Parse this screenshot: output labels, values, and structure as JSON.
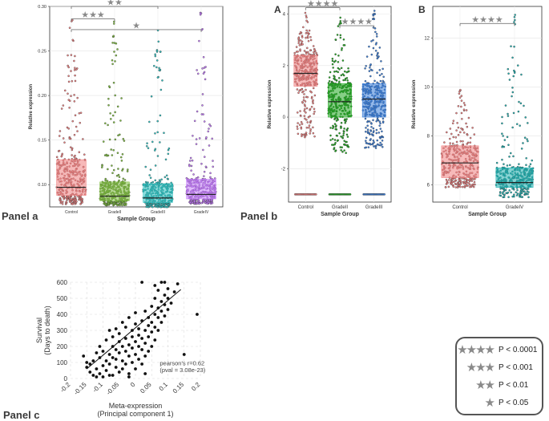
{
  "panels": {
    "a": {
      "label": "Panel a"
    },
    "b": {
      "label": "Panel b"
    },
    "c": {
      "label": "Panel c"
    }
  },
  "chart_data": [
    {
      "id": "panel-a",
      "type": "box",
      "title": "",
      "xlabel": "Sample Group",
      "ylabel": "Relative expression",
      "ylim": [
        0.075,
        0.3
      ],
      "yticks": [
        0.1,
        0.15,
        0.2,
        0.25,
        0.3
      ],
      "ytick_labels": [
        "0.10",
        "0.15",
        "0.20",
        "0.25",
        "0.30"
      ],
      "categories": [
        "Control",
        "GradeII",
        "GradeIII",
        "GradeIV"
      ],
      "colors": [
        "#f08080",
        "#7fbf3f",
        "#2ec4c4",
        "#c77dff"
      ],
      "boxes": [
        {
          "q1": 0.088,
          "median": 0.097,
          "q3": 0.128,
          "max": 0.298
        },
        {
          "q1": 0.082,
          "median": 0.087,
          "q3": 0.103,
          "max": 0.288
        },
        {
          "q1": 0.08,
          "median": 0.085,
          "q3": 0.101,
          "max": 0.284
        },
        {
          "q1": 0.084,
          "median": 0.089,
          "q3": 0.106,
          "max": 0.294
        }
      ],
      "significance": [
        {
          "from": 0,
          "to": 1,
          "stars": "★★★",
          "y": 0.286
        },
        {
          "from": 0,
          "to": 2,
          "stars": "★★",
          "y": 0.3
        },
        {
          "from": 0,
          "to": 3,
          "stars": "★",
          "y": 0.274
        }
      ]
    },
    {
      "id": "panel-b-A",
      "type": "box",
      "title": "A",
      "xlabel": "Sample Group",
      "ylabel": "Relative expression",
      "ylim": [
        -3.3,
        4.3
      ],
      "yticks": [
        -2,
        0,
        2,
        4
      ],
      "ytick_labels": [
        "-2",
        "0",
        "2",
        "4"
      ],
      "categories": [
        "Control",
        "GradeII",
        "GradeIII"
      ],
      "colors": [
        "#f08080",
        "#22aa22",
        "#3a7fdc"
      ],
      "boxes": [
        {
          "q1": 1.2,
          "median": 1.7,
          "q3": 2.4,
          "max": 4.1,
          "min": -0.8
        },
        {
          "q1": 0.0,
          "median": 0.6,
          "q3": 1.3,
          "max": 4.0,
          "min": -1.4
        },
        {
          "q1": 0.0,
          "median": 0.7,
          "q3": 1.3,
          "max": 4.2,
          "min": -1.2
        }
      ],
      "floor_value": -3,
      "significance": [
        {
          "from": 0,
          "to": 1,
          "stars": "★★★★",
          "y": 4.25
        },
        {
          "from": 1,
          "to": 2,
          "stars": "★★★★",
          "y": 3.55
        }
      ]
    },
    {
      "id": "panel-b-B",
      "type": "box",
      "title": "B",
      "xlabel": "Sample Group",
      "ylabel": "Relative expression",
      "ylim": [
        5.3,
        13.3
      ],
      "yticks": [
        6,
        8,
        10,
        12
      ],
      "ytick_labels": [
        "6",
        "8",
        "10",
        "12"
      ],
      "categories": [
        "Control",
        "GradeIV"
      ],
      "colors": [
        "#f08080",
        "#20b2b2"
      ],
      "boxes": [
        {
          "q1": 6.3,
          "median": 6.9,
          "q3": 7.6,
          "max": 9.9,
          "min": 5.9
        },
        {
          "q1": 5.9,
          "median": 6.1,
          "q3": 6.7,
          "max": 13.0,
          "min": 5.5
        }
      ],
      "significance": [
        {
          "from": 0,
          "to": 1,
          "stars": "★★★★",
          "y": 12.6
        }
      ]
    },
    {
      "id": "panel-c",
      "type": "scatter",
      "title": "",
      "xlabel": "Meta-expression\n(Principal component 1)",
      "ylabel": "Survival\n(Days to death)",
      "xlim": [
        -0.2,
        0.2
      ],
      "ylim": [
        0,
        600
      ],
      "xticks": [
        -0.2,
        -0.15,
        -0.1,
        -0.05,
        0,
        0.05,
        0.1,
        0.15,
        0.2
      ],
      "xtick_labels": [
        "-0.2",
        "-0.15",
        "-0.1",
        "-0.05",
        "0",
        "0.05",
        "0.1",
        "0.15",
        "0.2"
      ],
      "yticks": [
        0,
        100,
        200,
        300,
        400,
        500,
        600
      ],
      "ytick_labels": [
        "0",
        "100",
        "200",
        "300",
        "400",
        "500",
        "600"
      ],
      "fit_line": {
        "x": [
          -0.15,
          0.14
        ],
        "y": [
          60,
          555
        ]
      },
      "annotation": [
        "pearson's r=0.62",
        "(pval = 3.08e-23)"
      ],
      "points": [
        [
          -0.16,
          140
        ],
        [
          -0.15,
          70
        ],
        [
          -0.15,
          100
        ],
        [
          -0.14,
          40
        ],
        [
          -0.14,
          90
        ],
        [
          -0.13,
          110
        ],
        [
          -0.13,
          20
        ],
        [
          -0.12,
          160
        ],
        [
          -0.12,
          60
        ],
        [
          -0.11,
          30
        ],
        [
          -0.11,
          200
        ],
        [
          -0.11,
          130
        ],
        [
          -0.1,
          80
        ],
        [
          -0.1,
          10
        ],
        [
          -0.1,
          170
        ],
        [
          -0.09,
          240
        ],
        [
          -0.09,
          110
        ],
        [
          -0.09,
          50
        ],
        [
          -0.08,
          150
        ],
        [
          -0.08,
          90
        ],
        [
          -0.08,
          300
        ],
        [
          -0.07,
          200
        ],
        [
          -0.07,
          130
        ],
        [
          -0.07,
          20
        ],
        [
          -0.07,
          260
        ],
        [
          -0.06,
          180
        ],
        [
          -0.06,
          70
        ],
        [
          -0.06,
          310
        ],
        [
          -0.06,
          120
        ],
        [
          -0.05,
          230
        ],
        [
          -0.05,
          160
        ],
        [
          -0.05,
          40
        ],
        [
          -0.05,
          280
        ],
        [
          -0.04,
          200
        ],
        [
          -0.04,
          110
        ],
        [
          -0.04,
          350
        ],
        [
          -0.04,
          60
        ],
        [
          -0.03,
          250
        ],
        [
          -0.03,
          170
        ],
        [
          -0.03,
          90
        ],
        [
          -0.03,
          320
        ],
        [
          -0.02,
          210
        ],
        [
          -0.02,
          140
        ],
        [
          -0.02,
          30
        ],
        [
          -0.02,
          380
        ],
        [
          -0.01,
          260
        ],
        [
          -0.01,
          190
        ],
        [
          -0.01,
          100
        ],
        [
          -0.01,
          300
        ],
        [
          0.0,
          230
        ],
        [
          0.0,
          150
        ],
        [
          0.0,
          60
        ],
        [
          0.0,
          340
        ],
        [
          0.0,
          410
        ],
        [
          0.01,
          270
        ],
        [
          0.01,
          200
        ],
        [
          0.01,
          120
        ],
        [
          0.01,
          310
        ],
        [
          0.02,
          250
        ],
        [
          0.02,
          180
        ],
        [
          0.02,
          360
        ],
        [
          0.02,
          90
        ],
        [
          0.03,
          300
        ],
        [
          0.03,
          220
        ],
        [
          0.03,
          140
        ],
        [
          0.03,
          420
        ],
        [
          0.04,
          330
        ],
        [
          0.04,
          260
        ],
        [
          0.04,
          170
        ],
        [
          0.04,
          380
        ],
        [
          0.05,
          350
        ],
        [
          0.05,
          290
        ],
        [
          0.05,
          200
        ],
        [
          0.05,
          450
        ],
        [
          0.06,
          400
        ],
        [
          0.06,
          320
        ],
        [
          0.06,
          240
        ],
        [
          0.06,
          500
        ],
        [
          0.07,
          380
        ],
        [
          0.07,
          300
        ],
        [
          0.07,
          440
        ],
        [
          0.07,
          550
        ],
        [
          0.08,
          420
        ],
        [
          0.08,
          350
        ],
        [
          0.08,
          480
        ],
        [
          0.08,
          600
        ],
        [
          0.09,
          460
        ],
        [
          0.09,
          390
        ],
        [
          0.09,
          520
        ],
        [
          0.1,
          500
        ],
        [
          0.1,
          430
        ],
        [
          0.1,
          560
        ],
        [
          0.11,
          470
        ],
        [
          0.12,
          540
        ],
        [
          0.13,
          590
        ],
        [
          0.15,
          150
        ],
        [
          0.19,
          400
        ],
        [
          0.02,
          600
        ],
        [
          0.06,
          580
        ],
        [
          -0.08,
          20
        ],
        [
          -0.12,
          10
        ],
        [
          -0.02,
          10
        ],
        [
          0.03,
          30
        ],
        [
          0.09,
          600
        ]
      ]
    }
  ],
  "legend": {
    "items": [
      {
        "stars": "★★★★",
        "text": "P < 0.0001"
      },
      {
        "stars": "★★★",
        "text": "P < 0.001"
      },
      {
        "stars": "★★",
        "text": "P < 0.01"
      },
      {
        "stars": "★",
        "text": "P < 0.05"
      }
    ]
  }
}
